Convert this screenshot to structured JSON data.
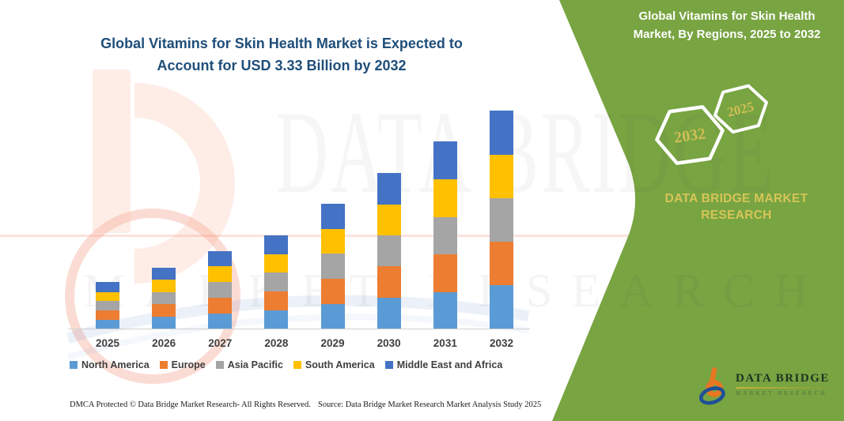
{
  "header": {
    "title": "Global Vitamins for Skin Health Market is Expected to Account for USD 3.33 Billion by 2032"
  },
  "side_panel": {
    "title": "Global Vitamins for Skin Health Market, By Regions, 2025 to 2032",
    "hexagons": [
      {
        "label": "2032"
      },
      {
        "label": "2025"
      }
    ],
    "brand_caption": "DATA BRIDGE MARKET RESEARCH",
    "colors": {
      "panel_green": "#78A442",
      "hex_outline": "#ffffff",
      "hex_text": "#D2BF55",
      "caption_text": "#D6C558"
    }
  },
  "watermark": {
    "row1": "DATA BRIDGE",
    "row2": "MARKET RESEARCH"
  },
  "chart_data": {
    "type": "bar",
    "stacked": true,
    "title": "Global Vitamins for Skin Health Market is Expected to Account for USD 3.33 Billion by 2032",
    "unit": "USD Billion",
    "categories": [
      "2025",
      "2026",
      "2027",
      "2028",
      "2029",
      "2030",
      "2031",
      "2032"
    ],
    "series": [
      {
        "name": "North America",
        "color": "#5B9BD5",
        "values": [
          0.14,
          0.19,
          0.24,
          0.29,
          0.38,
          0.48,
          0.57,
          0.67
        ]
      },
      {
        "name": "Europe",
        "color": "#ED7D31",
        "values": [
          0.15,
          0.19,
          0.24,
          0.29,
          0.39,
          0.48,
          0.57,
          0.67
        ]
      },
      {
        "name": "Asia Pacific",
        "color": "#A5A5A5",
        "values": [
          0.14,
          0.19,
          0.24,
          0.28,
          0.38,
          0.47,
          0.57,
          0.66
        ]
      },
      {
        "name": "South America",
        "color": "#FFC000",
        "values": [
          0.14,
          0.19,
          0.24,
          0.28,
          0.38,
          0.47,
          0.57,
          0.66
        ]
      },
      {
        "name": "Middle East and Africa",
        "color": "#4472C4",
        "values": [
          0.15,
          0.18,
          0.23,
          0.29,
          0.38,
          0.48,
          0.58,
          0.67
        ]
      }
    ],
    "totals": [
      0.72,
      0.94,
      1.19,
      1.43,
      1.91,
      2.38,
      2.86,
      3.33
    ],
    "ylim": [
      0,
      3.5
    ],
    "grid": false,
    "value_axis_visible": false,
    "legend_position": "bottom"
  },
  "footer": {
    "left": "DMCA Protected © Data Bridge Market Research-  All Rights Reserved.",
    "right": "Source: Data Bridge Market Research  Market Analysis Study 2025"
  },
  "logo": {
    "name": "DATA BRIDGE",
    "sub": "MARKET RESEARCH"
  }
}
